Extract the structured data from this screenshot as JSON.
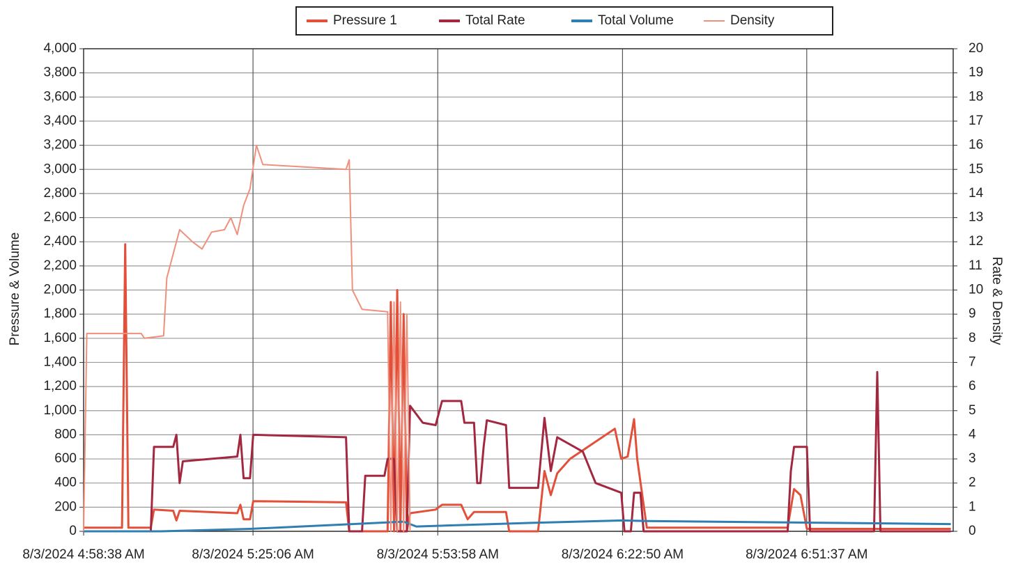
{
  "chart_data": {
    "type": "line",
    "y_label": "Pressure & Volume",
    "y2_label": "Rate & Density",
    "xlim": [
      "2024-08-03T04:58:38",
      "2024-08-03T07:14:30"
    ],
    "xticks": [
      {
        "value": "2024-08-03T04:58:38",
        "label": "8/3/2024 4:58:38 AM"
      },
      {
        "value": "2024-08-03T05:25:06",
        "label": "8/3/2024 5:25:06 AM"
      },
      {
        "value": "2024-08-03T05:53:58",
        "label": "8/3/2024 5:53:58 AM"
      },
      {
        "value": "2024-08-03T06:22:50",
        "label": "8/3/2024 6:22:50 AM"
      },
      {
        "value": "2024-08-03T06:51:37",
        "label": "8/3/2024 6:51:37 AM"
      }
    ],
    "ylim": [
      0,
      4000
    ],
    "yticks": [
      0,
      200,
      400,
      600,
      800,
      {
        "value": 1000,
        "label": "1,000"
      },
      {
        "value": 1200,
        "label": "1,200"
      },
      {
        "value": 1400,
        "label": "1,400"
      },
      {
        "value": 1600,
        "label": "1,600"
      },
      {
        "value": 1800,
        "label": "1,800"
      },
      {
        "value": 2000,
        "label": "2,000"
      },
      {
        "value": 2200,
        "label": "2,200"
      },
      {
        "value": 2400,
        "label": "2,400"
      },
      {
        "value": 2600,
        "label": "2,600"
      },
      {
        "value": 2800,
        "label": "2,800"
      },
      {
        "value": 3000,
        "label": "3,000"
      },
      {
        "value": 3200,
        "label": "3,200"
      },
      {
        "value": 3400,
        "label": "3,400"
      },
      {
        "value": 3600,
        "label": "3,600"
      },
      {
        "value": 3800,
        "label": "3,800"
      },
      {
        "value": 4000,
        "label": "4,000"
      }
    ],
    "y2lim": [
      0,
      20
    ],
    "y2ticks": [
      0,
      1,
      2,
      3,
      4,
      5,
      6,
      7,
      8,
      9,
      10,
      11,
      12,
      13,
      14,
      15,
      16,
      17,
      18,
      19,
      20
    ],
    "grid": true,
    "legend": "top",
    "series": [
      {
        "name": "Pressure 1",
        "color": "#e2503a",
        "x": [
          "2024-08-03T04:58:38",
          "2024-08-03T05:04:38",
          "2024-08-03T05:05:08",
          "2024-08-03T05:05:38",
          "2024-08-03T05:09:08",
          "2024-08-03T05:09:38",
          "2024-08-03T05:12:38",
          "2024-08-03T05:13:08",
          "2024-08-03T05:13:38",
          "2024-08-03T05:22:38",
          "2024-08-03T05:23:08",
          "2024-08-03T05:23:38",
          "2024-08-03T05:24:38",
          "2024-08-03T05:25:08",
          "2024-08-03T05:39:38",
          "2024-08-03T05:40:08",
          "2024-08-03T05:46:08",
          "2024-08-03T05:46:38",
          "2024-08-03T05:47:08",
          "2024-08-03T05:47:38",
          "2024-08-03T05:48:08",
          "2024-08-03T05:48:38",
          "2024-08-03T05:49:08",
          "2024-08-03T05:49:38",
          "2024-08-03T05:53:38",
          "2024-08-03T05:54:38",
          "2024-08-03T05:57:38",
          "2024-08-03T05:58:38",
          "2024-08-03T05:59:38",
          "2024-08-03T06:04:38",
          "2024-08-03T06:05:08",
          "2024-08-03T06:09:38",
          "2024-08-03T06:10:38",
          "2024-08-03T06:11:38",
          "2024-08-03T06:12:38",
          "2024-08-03T06:14:38",
          "2024-08-03T06:21:38",
          "2024-08-03T06:22:38",
          "2024-08-03T06:23:38",
          "2024-08-03T06:24:38",
          "2024-08-03T06:25:08",
          "2024-08-03T06:26:38",
          "2024-08-03T06:48:38",
          "2024-08-03T06:49:38",
          "2024-08-03T06:50:38",
          "2024-08-03T06:51:38",
          "2024-08-03T07:14:08"
        ],
        "values": [
          30,
          30,
          2380,
          30,
          30,
          180,
          170,
          90,
          170,
          150,
          220,
          100,
          100,
          250,
          240,
          0,
          0,
          1900,
          0,
          2000,
          0,
          1800,
          0,
          150,
          180,
          220,
          220,
          100,
          160,
          160,
          0,
          0,
          500,
          300,
          480,
          600,
          850,
          600,
          620,
          930,
          600,
          30,
          30,
          350,
          300,
          20,
          20
        ]
      },
      {
        "name": "Total Rate",
        "color": "#a3283f",
        "axis": "y2",
        "x": [
          "2024-08-03T04:58:38",
          "2024-08-03T05:09:08",
          "2024-08-03T05:09:38",
          "2024-08-03T05:12:38",
          "2024-08-03T05:13:08",
          "2024-08-03T05:13:38",
          "2024-08-03T05:14:08",
          "2024-08-03T05:22:38",
          "2024-08-03T05:23:08",
          "2024-08-03T05:23:38",
          "2024-08-03T05:24:38",
          "2024-08-03T05:25:08",
          "2024-08-03T05:39:38",
          "2024-08-03T05:40:08",
          "2024-08-03T05:42:08",
          "2024-08-03T05:42:38",
          "2024-08-03T05:45:38",
          "2024-08-03T05:46:08",
          "2024-08-03T05:47:08",
          "2024-08-03T05:47:38",
          "2024-08-03T05:49:08",
          "2024-08-03T05:49:38",
          "2024-08-03T05:51:38",
          "2024-08-03T05:53:38",
          "2024-08-03T05:54:38",
          "2024-08-03T05:57:38",
          "2024-08-03T05:58:08",
          "2024-08-03T05:59:38",
          "2024-08-03T06:00:08",
          "2024-08-03T06:00:38",
          "2024-08-03T06:01:08",
          "2024-08-03T06:01:38",
          "2024-08-03T06:04:38",
          "2024-08-03T06:05:08",
          "2024-08-03T06:09:38",
          "2024-08-03T06:10:38",
          "2024-08-03T06:11:38",
          "2024-08-03T06:12:38",
          "2024-08-03T06:16:38",
          "2024-08-03T06:18:38",
          "2024-08-03T06:22:38",
          "2024-08-03T06:23:08",
          "2024-08-03T06:24:08",
          "2024-08-03T06:24:38",
          "2024-08-03T06:25:38",
          "2024-08-03T06:26:08",
          "2024-08-03T06:48:38",
          "2024-08-03T06:49:08",
          "2024-08-03T06:49:38",
          "2024-08-03T06:51:38",
          "2024-08-03T06:52:08",
          "2024-08-03T07:02:08",
          "2024-08-03T07:02:38",
          "2024-08-03T07:03:08",
          "2024-08-03T07:14:08"
        ],
        "values": [
          0,
          0,
          3.5,
          3.5,
          4,
          2,
          2.9,
          3.1,
          4,
          2.2,
          2.2,
          4,
          3.9,
          0,
          0,
          2.3,
          2.3,
          3,
          3,
          0,
          0,
          5.2,
          4.5,
          4.4,
          5.4,
          5.4,
          4.5,
          4.5,
          2,
          2,
          3.5,
          4.6,
          4.4,
          1.8,
          1.8,
          4.7,
          2.5,
          3.9,
          3.3,
          2,
          1.6,
          0,
          0,
          1.6,
          1.6,
          0,
          0,
          2.5,
          3.5,
          3.5,
          0,
          0,
          6.6,
          0,
          0
        ]
      },
      {
        "name": "Total Volume",
        "color": "#2f7fb2",
        "x": [
          "2024-08-03T04:58:38",
          "2024-08-03T05:10:38",
          "2024-08-03T05:24:38",
          "2024-08-03T05:40:38",
          "2024-08-03T05:48:38",
          "2024-08-03T05:50:38",
          "2024-08-03T06:08:38",
          "2024-08-03T06:22:38",
          "2024-08-03T06:26:38",
          "2024-08-03T07:14:08"
        ],
        "values": [
          0,
          0,
          20,
          60,
          80,
          40,
          70,
          90,
          85,
          60
        ]
      },
      {
        "name": "Density",
        "color": "#f0907c",
        "axis": "y2",
        "x": [
          "2024-08-03T04:58:38",
          "2024-08-03T04:59:08",
          "2024-08-03T05:07:38",
          "2024-08-03T05:08:08",
          "2024-08-03T05:11:08",
          "2024-08-03T05:11:38",
          "2024-08-03T05:13:38",
          "2024-08-03T05:15:38",
          "2024-08-03T05:17:08",
          "2024-08-03T05:18:38",
          "2024-08-03T05:20:38",
          "2024-08-03T05:21:38",
          "2024-08-03T05:22:38",
          "2024-08-03T05:23:38",
          "2024-08-03T05:24:38",
          "2024-08-03T05:25:38",
          "2024-08-03T05:26:38",
          "2024-08-03T05:39:38",
          "2024-08-03T05:40:08",
          "2024-08-03T05:40:38",
          "2024-08-03T05:42:08",
          "2024-08-03T05:46:08",
          "2024-08-03T05:46:38",
          "2024-08-03T05:47:08",
          "2024-08-03T05:47:38",
          "2024-08-03T05:48:08",
          "2024-08-03T05:48:38",
          "2024-08-03T05:49:08",
          "2024-08-03T05:49:38"
        ],
        "values": [
          0,
          8.2,
          8.2,
          8,
          8.1,
          10.5,
          12.5,
          12,
          11.7,
          12.4,
          12.5,
          13,
          12.3,
          13.5,
          14.2,
          16,
          15.2,
          15,
          15.4,
          10,
          9.2,
          9.1,
          0,
          9.5,
          0,
          9.5,
          0,
          9,
          0
        ]
      }
    ]
  }
}
